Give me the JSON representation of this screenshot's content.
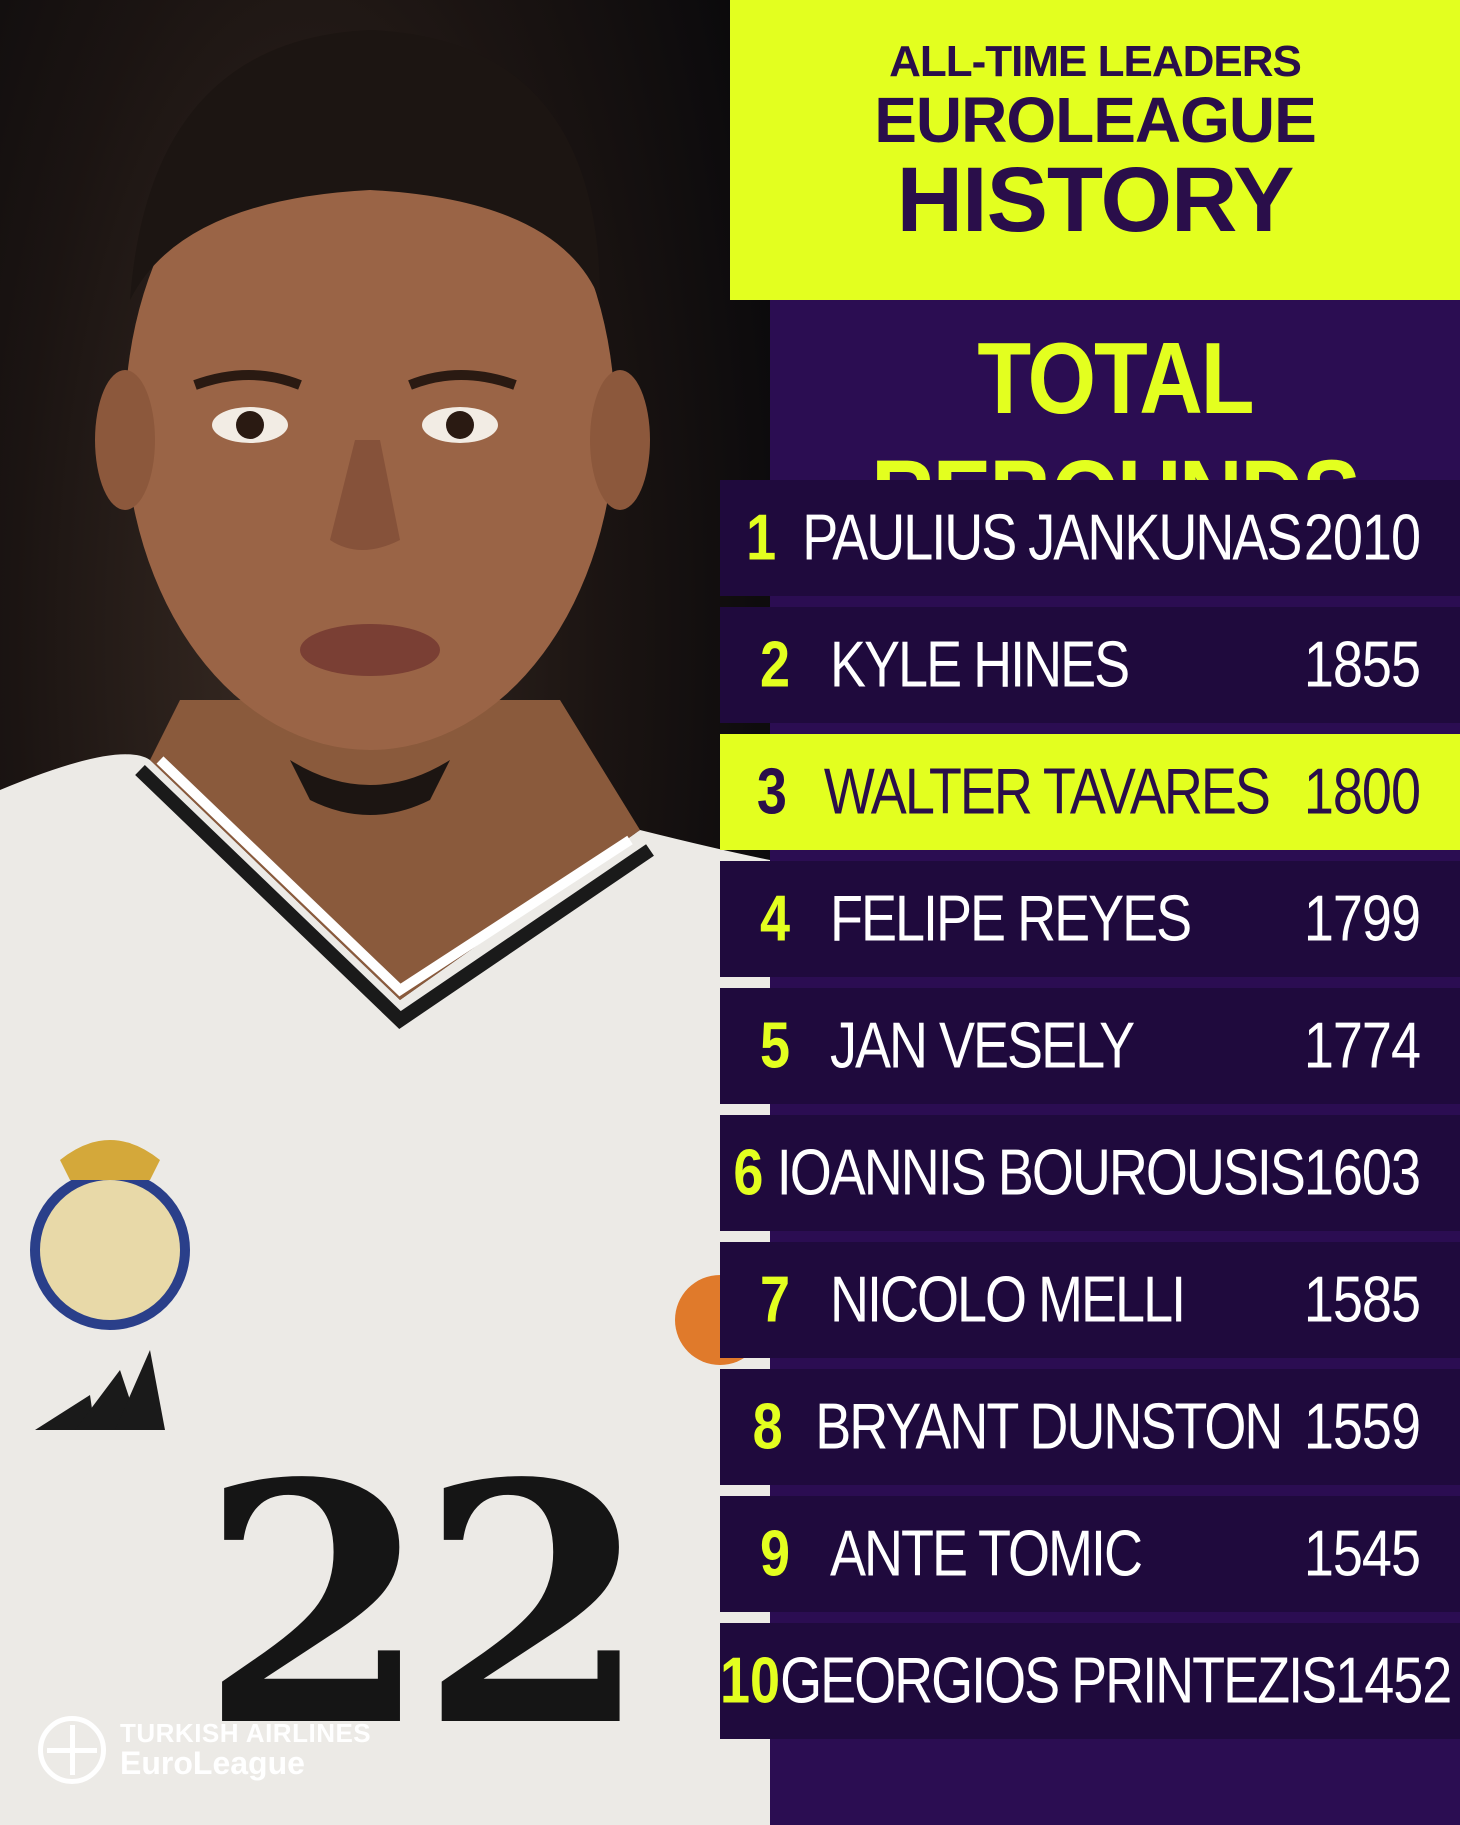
{
  "header": {
    "line1": "ALL-TIME LEADERS",
    "line2": "EUROLEAGUE",
    "line3": "HISTORY"
  },
  "subtitle": "TOTAL REBOUNDS",
  "colors": {
    "accent": "#e3ff1f",
    "panel": "#2b0d52",
    "row": "#1f0a3d",
    "text_dark": "#2a0e4a"
  },
  "leaders": [
    {
      "rank": "1",
      "name": "PAULIUS JANKUNAS",
      "value": "2010"
    },
    {
      "rank": "2",
      "name": "KYLE HINES",
      "value": "1855"
    },
    {
      "rank": "3",
      "name": "WALTER TAVARES",
      "value": "1800"
    },
    {
      "rank": "4",
      "name": "FELIPE REYES",
      "value": "1799"
    },
    {
      "rank": "5",
      "name": "JAN VESELY",
      "value": "1774"
    },
    {
      "rank": "6",
      "name": "IOANNIS BOUROUSIS",
      "value": "1603"
    },
    {
      "rank": "7",
      "name": "NICOLO MELLI",
      "value": "1585"
    },
    {
      "rank": "8",
      "name": "BRYANT DUNSTON",
      "value": "1559"
    },
    {
      "rank": "9",
      "name": "ANTE TOMIC",
      "value": "1545"
    },
    {
      "rank": "10",
      "name": "GEORGIOS PRINTEZIS",
      "value": "1452"
    }
  ],
  "jersey_number": "22",
  "logo": {
    "line1": "TURKISH AIRLINES",
    "line2": "EuroLeague"
  }
}
